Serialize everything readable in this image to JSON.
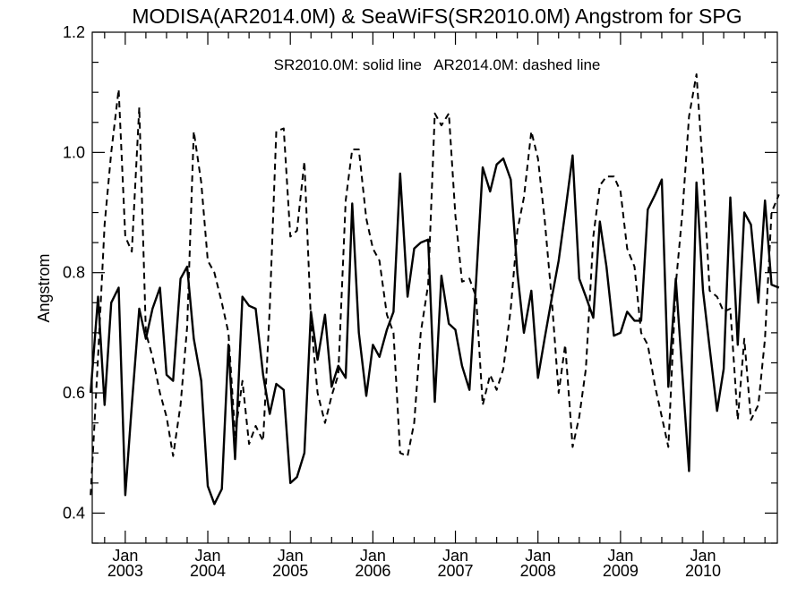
{
  "chart_data": {
    "type": "line",
    "title": "MODISA(AR2014.0M) & SeaWiFS(SR2010.0M)  Angstrom for SPG",
    "annotation": "SR2010.0M: solid line   AR2014.0M: dashed line",
    "ylabel": "Angstrom",
    "xlabel": "",
    "ylim": [
      0.35,
      1.2
    ],
    "xlim": [
      2002.6,
      2010.9
    ],
    "y_ticks": [
      0.4,
      0.6,
      0.8,
      1.0,
      1.2
    ],
    "y_tick_labels": [
      "0.4",
      "0.6",
      "0.8",
      "1.0",
      "1.2"
    ],
    "x_ticks": [
      {
        "pos": 2003,
        "month": "Jan",
        "year": "2003"
      },
      {
        "pos": 2004,
        "month": "Jan",
        "year": "2004"
      },
      {
        "pos": 2005,
        "month": "Jan",
        "year": "2005"
      },
      {
        "pos": 2006,
        "month": "Jan",
        "year": "2006"
      },
      {
        "pos": 2007,
        "month": "Jan",
        "year": "2007"
      },
      {
        "pos": 2008,
        "month": "Jan",
        "year": "2008"
      },
      {
        "pos": 2009,
        "month": "Jan",
        "year": "2009"
      },
      {
        "pos": 2010,
        "month": "Jan",
        "year": "2010"
      }
    ],
    "series": [
      {
        "style": "solid",
        "x": [
          2002.58,
          2002.67,
          2002.75,
          2002.83,
          2002.92,
          2003.0,
          2003.08,
          2003.17,
          2003.25,
          2003.33,
          2003.42,
          2003.5,
          2003.58,
          2003.67,
          2003.75,
          2003.83,
          2003.92,
          2004.0,
          2004.08,
          2004.17,
          2004.25,
          2004.33,
          2004.42,
          2004.5,
          2004.58,
          2004.67,
          2004.75,
          2004.83,
          2004.92,
          2005.0,
          2005.08,
          2005.17,
          2005.25,
          2005.33,
          2005.42,
          2005.5,
          2005.58,
          2005.67,
          2005.75,
          2005.83,
          2005.92,
          2006.0,
          2006.08,
          2006.17,
          2006.25,
          2006.33,
          2006.42,
          2006.5,
          2006.58,
          2006.67,
          2006.75,
          2006.83,
          2006.92,
          2007.0,
          2007.08,
          2007.17,
          2007.25,
          2007.33,
          2007.42,
          2007.5,
          2007.58,
          2007.67,
          2007.75,
          2007.83,
          2007.92,
          2008.0,
          2008.08,
          2008.17,
          2008.25,
          2008.33,
          2008.42,
          2008.5,
          2008.58,
          2008.67,
          2008.75,
          2008.83,
          2008.92,
          2009.0,
          2009.08,
          2009.17,
          2009.25,
          2009.33,
          2009.42,
          2009.5,
          2009.58,
          2009.67,
          2009.75,
          2009.83,
          2009.92,
          2010.0,
          2010.08,
          2010.17,
          2010.25,
          2010.33,
          2010.42,
          2010.5,
          2010.58,
          2010.67,
          2010.75,
          2010.83,
          2010.92
        ],
        "values": [
          0.6,
          0.76,
          0.58,
          0.75,
          0.775,
          0.43,
          0.58,
          0.74,
          0.69,
          0.74,
          0.775,
          0.63,
          0.62,
          0.79,
          0.81,
          0.69,
          0.62,
          0.445,
          0.415,
          0.44,
          0.68,
          0.49,
          0.76,
          0.745,
          0.74,
          0.63,
          0.565,
          0.615,
          0.605,
          0.45,
          0.46,
          0.5,
          0.735,
          0.655,
          0.73,
          0.61,
          0.645,
          0.625,
          0.915,
          0.7,
          0.595,
          0.68,
          0.66,
          0.705,
          0.735,
          0.965,
          0.76,
          0.84,
          0.85,
          0.855,
          0.585,
          0.795,
          0.715,
          0.705,
          0.645,
          0.605,
          0.785,
          0.975,
          0.935,
          0.98,
          0.99,
          0.955,
          0.8,
          0.7,
          0.77,
          0.625,
          0.69,
          0.76,
          0.82,
          0.9,
          0.995,
          0.79,
          0.76,
          0.725,
          0.885,
          0.81,
          0.695,
          0.7,
          0.735,
          0.72,
          0.72,
          0.905,
          0.93,
          0.955,
          0.61,
          0.79,
          0.63,
          0.47,
          0.95,
          0.77,
          0.675,
          0.57,
          0.64,
          0.925,
          0.68,
          0.9,
          0.88,
          0.75,
          0.92,
          0.78,
          0.775
        ]
      },
      {
        "style": "dashed",
        "x": [
          2002.58,
          2002.67,
          2002.75,
          2002.83,
          2002.92,
          2003.0,
          2003.08,
          2003.17,
          2003.25,
          2003.33,
          2003.42,
          2003.5,
          2003.58,
          2003.67,
          2003.75,
          2003.83,
          2003.92,
          2004.0,
          2004.08,
          2004.17,
          2004.25,
          2004.33,
          2004.42,
          2004.5,
          2004.58,
          2004.67,
          2004.75,
          2004.83,
          2004.92,
          2005.0,
          2005.08,
          2005.17,
          2005.25,
          2005.33,
          2005.42,
          2005.5,
          2005.58,
          2005.67,
          2005.75,
          2005.83,
          2005.92,
          2006.0,
          2006.08,
          2006.17,
          2006.25,
          2006.33,
          2006.42,
          2006.5,
          2006.58,
          2006.67,
          2006.75,
          2006.83,
          2006.92,
          2007.0,
          2007.08,
          2007.17,
          2007.25,
          2007.33,
          2007.42,
          2007.5,
          2007.58,
          2007.67,
          2007.75,
          2007.83,
          2007.92,
          2008.0,
          2008.08,
          2008.17,
          2008.25,
          2008.33,
          2008.42,
          2008.5,
          2008.58,
          2008.67,
          2008.75,
          2008.83,
          2008.92,
          2009.0,
          2009.08,
          2009.17,
          2009.25,
          2009.33,
          2009.42,
          2009.5,
          2009.58,
          2009.67,
          2009.75,
          2009.83,
          2009.92,
          2010.0,
          2010.08,
          2010.17,
          2010.25,
          2010.33,
          2010.42,
          2010.5,
          2010.58,
          2010.67,
          2010.75,
          2010.83,
          2010.92
        ],
        "values": [
          0.43,
          0.66,
          0.88,
          1.0,
          1.105,
          0.86,
          0.835,
          1.075,
          0.7,
          0.66,
          0.6,
          0.56,
          0.495,
          0.58,
          0.71,
          1.035,
          0.95,
          0.82,
          0.8,
          0.75,
          0.7,
          0.53,
          0.62,
          0.515,
          0.545,
          0.52,
          0.74,
          1.035,
          1.04,
          0.86,
          0.87,
          0.985,
          0.72,
          0.6,
          0.55,
          0.595,
          0.63,
          0.92,
          1.005,
          1.005,
          0.89,
          0.84,
          0.82,
          0.73,
          0.7,
          0.5,
          0.495,
          0.55,
          0.7,
          0.78,
          1.065,
          1.045,
          1.065,
          0.895,
          0.785,
          0.79,
          0.76,
          0.58,
          0.63,
          0.605,
          0.64,
          0.74,
          0.87,
          0.925,
          1.035,
          0.99,
          0.89,
          0.75,
          0.6,
          0.68,
          0.51,
          0.56,
          0.64,
          0.86,
          0.945,
          0.96,
          0.96,
          0.935,
          0.84,
          0.81,
          0.7,
          0.68,
          0.61,
          0.56,
          0.51,
          0.78,
          0.9,
          1.06,
          1.13,
          0.97,
          0.77,
          0.76,
          0.735,
          0.74,
          0.555,
          0.69,
          0.555,
          0.58,
          0.69,
          0.9,
          0.93
        ]
      }
    ],
    "grid": false
  }
}
